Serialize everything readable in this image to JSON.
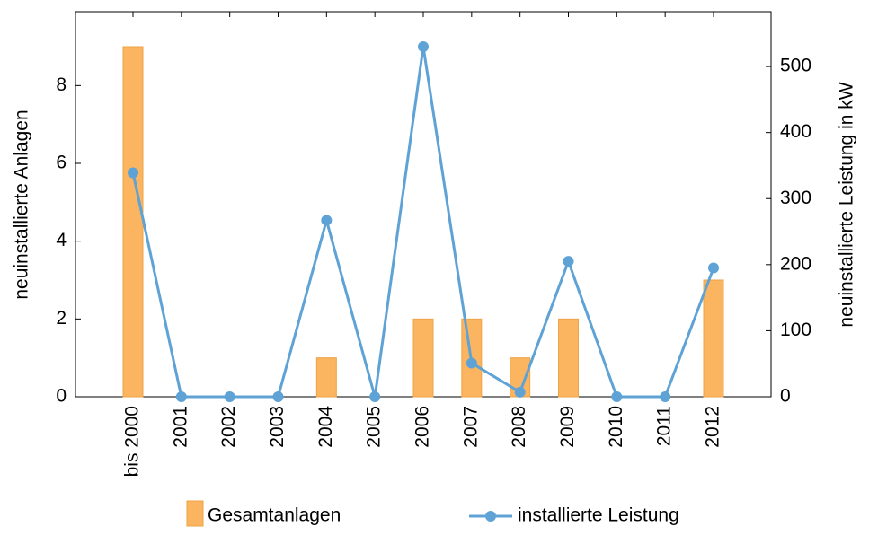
{
  "chart_data": {
    "type": "bar-line",
    "categories": [
      "bis 2000",
      "2001",
      "2002",
      "2003",
      "2004",
      "2005",
      "2006",
      "2007",
      "2008",
      "2009",
      "2010",
      "2011",
      "2012"
    ],
    "series": [
      {
        "name": "Gesamtanlagen",
        "type": "bar",
        "color": "#fbb45f",
        "values": [
          9,
          0,
          0,
          0,
          1,
          0,
          2,
          2,
          1,
          2,
          0,
          0,
          3
        ]
      },
      {
        "name": "installierte Leistung",
        "type": "line",
        "axis": "y2",
        "color": "#5fa3d6",
        "values": [
          339,
          0,
          0,
          0,
          267,
          0,
          530,
          51,
          7,
          205,
          0,
          0,
          195
        ]
      }
    ],
    "ylabel": "neuinstallierte Anlagen",
    "y2label": "neuinstallierte Leistung in kW",
    "ylim": [
      0,
      9.9
    ],
    "yticks": [
      0,
      2,
      4,
      6,
      8
    ],
    "y2lim": [
      0,
      583
    ],
    "y2ticks": [
      0,
      100,
      200,
      300,
      400,
      500
    ],
    "legend": "bottom"
  }
}
